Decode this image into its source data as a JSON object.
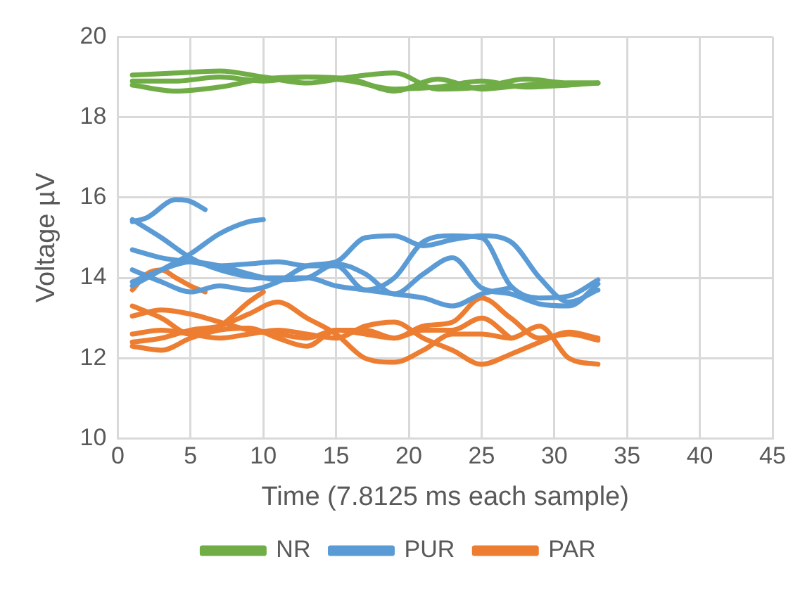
{
  "chart_data": {
    "type": "line",
    "xlabel": "Time (7.8125 ms each sample)",
    "ylabel": "Voltage µV",
    "xlim": [
      0,
      45
    ],
    "xticks": [
      0,
      5,
      10,
      15,
      20,
      25,
      30,
      35,
      40,
      45
    ],
    "ylim": [
      10,
      20
    ],
    "yticks": [
      10,
      12,
      14,
      16,
      18,
      20
    ],
    "grid": true,
    "legend": "bottom",
    "marker": "none",
    "line_style": "solid",
    "series": [
      {
        "name": "NR",
        "color": "#70ad47",
        "x": [
          1,
          4,
          7,
          10,
          13,
          16,
          19,
          22,
          25,
          28,
          31,
          33
        ],
        "values": [
          19.05,
          19.1,
          19.15,
          19.0,
          18.85,
          19.0,
          19.1,
          18.7,
          18.75,
          18.95,
          18.85,
          18.85
        ]
      },
      {
        "color": "#70ad47",
        "x": [
          1,
          4,
          7,
          10,
          13,
          16,
          19,
          22,
          25,
          28,
          31,
          33
        ],
        "values": [
          18.8,
          18.65,
          18.75,
          18.95,
          19.0,
          18.9,
          18.7,
          18.75,
          18.9,
          18.75,
          18.8,
          18.85
        ]
      },
      {
        "color": "#70ad47",
        "x": [
          1,
          4,
          7,
          10,
          13,
          16,
          19,
          22,
          25,
          28,
          31,
          33
        ],
        "values": [
          18.9,
          18.9,
          19.0,
          18.9,
          19.0,
          18.95,
          18.65,
          18.95,
          18.7,
          18.8,
          18.85,
          18.85
        ]
      },
      {
        "name": "PUR",
        "color": "#5b9bd5",
        "x": [
          1,
          2,
          4,
          5,
          6
        ],
        "values": [
          15.4,
          15.5,
          15.95,
          15.9,
          15.7
        ]
      },
      {
        "color": "#5b9bd5",
        "x": [
          1,
          3,
          5,
          7,
          9,
          10
        ],
        "values": [
          13.8,
          14.2,
          14.6,
          15.1,
          15.4,
          15.45
        ]
      },
      {
        "color": "#5b9bd5",
        "x": [
          1,
          3,
          5,
          7,
          10,
          13,
          15,
          17,
          19,
          21,
          23,
          25,
          27
        ],
        "values": [
          15.45,
          15.0,
          14.5,
          14.2,
          14.0,
          14.0,
          13.8,
          13.7,
          13.6,
          13.5,
          13.3,
          13.6,
          13.75
        ]
      },
      {
        "color": "#5b9bd5",
        "x": [
          1,
          3,
          5,
          7,
          9,
          11,
          13,
          15,
          17,
          19,
          21,
          23,
          25,
          27,
          29,
          31,
          33
        ],
        "values": [
          14.7,
          14.5,
          14.4,
          14.3,
          14.35,
          14.4,
          14.3,
          14.3,
          13.7,
          14.0,
          14.9,
          15.05,
          15.0,
          13.8,
          13.5,
          13.55,
          13.95
        ]
      },
      {
        "color": "#5b9bd5",
        "x": [
          1,
          3,
          5,
          7,
          9,
          11,
          13,
          15,
          17,
          19,
          21,
          23,
          25,
          27,
          29,
          31,
          33
        ],
        "values": [
          14.2,
          13.9,
          13.65,
          13.8,
          13.7,
          13.9,
          14.3,
          14.4,
          15.0,
          15.05,
          14.8,
          14.95,
          15.05,
          14.9,
          14.0,
          13.4,
          13.7
        ]
      },
      {
        "color": "#5b9bd5",
        "x": [
          1,
          3,
          5,
          7,
          9,
          11,
          13,
          15,
          17,
          19,
          21,
          23,
          25,
          27,
          29,
          31,
          33
        ],
        "values": [
          13.9,
          14.2,
          14.4,
          14.3,
          14.1,
          13.95,
          14.0,
          14.35,
          14.1,
          13.6,
          14.1,
          14.5,
          13.75,
          13.6,
          13.35,
          13.3,
          13.85
        ]
      },
      {
        "name": "PAR",
        "color": "#ed7d31",
        "x": [
          1,
          2,
          3,
          4,
          5,
          6
        ],
        "values": [
          13.7,
          14.1,
          14.2,
          14.0,
          13.8,
          13.65
        ]
      },
      {
        "color": "#ed7d31",
        "x": [
          1,
          3,
          5,
          7,
          9,
          10
        ],
        "values": [
          13.3,
          13.0,
          12.6,
          12.8,
          13.4,
          13.65
        ]
      },
      {
        "color": "#ed7d31",
        "x": [
          1,
          3,
          5,
          7,
          9,
          11,
          13,
          15,
          17,
          19,
          21,
          23,
          25,
          27,
          29,
          31,
          33
        ],
        "values": [
          13.05,
          13.2,
          13.1,
          12.9,
          12.7,
          12.6,
          12.5,
          12.7,
          12.7,
          12.5,
          12.8,
          12.9,
          13.5,
          13.0,
          12.5,
          12.6,
          12.45
        ]
      },
      {
        "color": "#ed7d31",
        "x": [
          1,
          3,
          5,
          7,
          9,
          11,
          13,
          15,
          17,
          19,
          21,
          23,
          25,
          27,
          29,
          31,
          33
        ],
        "values": [
          12.4,
          12.5,
          12.7,
          12.8,
          13.1,
          13.4,
          13.0,
          12.6,
          12.0,
          11.9,
          12.2,
          12.6,
          12.6,
          12.5,
          12.8,
          12.0,
          11.85
        ]
      },
      {
        "color": "#ed7d31",
        "x": [
          1,
          3,
          5,
          7,
          9,
          11,
          13,
          15,
          17,
          19,
          21,
          23,
          25,
          27,
          29,
          31,
          33
        ],
        "values": [
          12.6,
          12.7,
          12.6,
          12.5,
          12.6,
          12.7,
          12.6,
          12.5,
          12.8,
          12.9,
          12.5,
          12.2,
          11.85,
          12.1,
          12.4,
          12.65,
          12.5
        ]
      },
      {
        "color": "#ed7d31",
        "x": [
          1,
          3,
          5,
          7,
          9,
          11,
          13,
          15,
          17,
          19,
          21,
          23,
          25,
          27
        ],
        "values": [
          12.3,
          12.2,
          12.5,
          12.7,
          12.75,
          12.5,
          12.3,
          12.7,
          12.6,
          12.5,
          12.7,
          12.7,
          13.0,
          12.5
        ]
      }
    ]
  }
}
